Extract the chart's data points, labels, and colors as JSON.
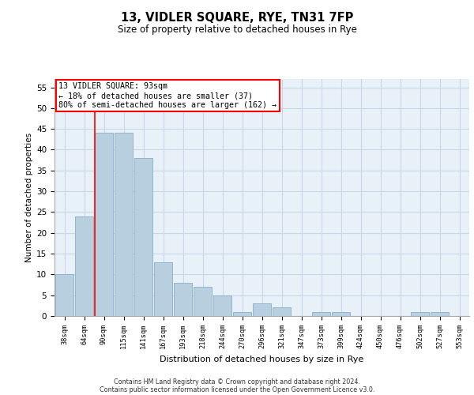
{
  "title": "13, VIDLER SQUARE, RYE, TN31 7FP",
  "subtitle": "Size of property relative to detached houses in Rye",
  "xlabel": "Distribution of detached houses by size in Rye",
  "ylabel": "Number of detached properties",
  "categories": [
    "38sqm",
    "64sqm",
    "90sqm",
    "115sqm",
    "141sqm",
    "167sqm",
    "193sqm",
    "218sqm",
    "244sqm",
    "270sqm",
    "296sqm",
    "321sqm",
    "347sqm",
    "373sqm",
    "399sqm",
    "424sqm",
    "450sqm",
    "476sqm",
    "502sqm",
    "527sqm",
    "553sqm"
  ],
  "values": [
    10,
    24,
    44,
    44,
    38,
    13,
    8,
    7,
    5,
    1,
    3,
    2,
    0,
    1,
    1,
    0,
    0,
    0,
    1,
    1,
    0
  ],
  "bar_color": "#b8cfe0",
  "bar_edge_color": "#8bafc8",
  "grid_color": "#c8d8e8",
  "background_color": "#e8f0f8",
  "annotation_text": "13 VIDLER SQUARE: 93sqm\n← 18% of detached houses are smaller (37)\n80% of semi-detached houses are larger (162) →",
  "annotation_box_color": "white",
  "annotation_box_edge_color": "red",
  "ylim": [
    0,
    57
  ],
  "yticks": [
    0,
    5,
    10,
    15,
    20,
    25,
    30,
    35,
    40,
    45,
    50,
    55
  ],
  "footer_line1": "Contains HM Land Registry data © Crown copyright and database right 2024.",
  "footer_line2": "Contains public sector information licensed under the Open Government Licence v3.0."
}
